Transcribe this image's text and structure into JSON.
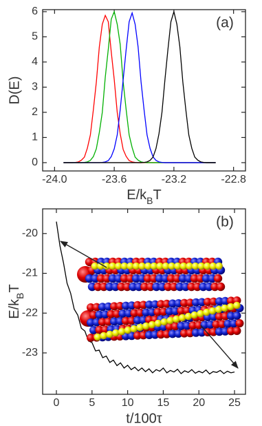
{
  "chart_data": [
    {
      "type": "line",
      "panel_label": "(a)",
      "ylabel": "D(E)",
      "xlabel": [
        "E/k",
        "B",
        "T"
      ],
      "xlim": [
        -24.08,
        -22.72
      ],
      "ylim": [
        -0.33,
        6.08
      ],
      "xticks": [
        {
          "value": -24.0,
          "label": "-24.0"
        },
        -23.6,
        -23.2,
        -22.8
      ],
      "yticks": [
        0,
        1,
        2,
        3,
        4,
        5,
        6
      ],
      "x": [
        -23.94,
        -23.92,
        -23.9,
        -23.88,
        -23.86,
        -23.84,
        -23.82,
        -23.8,
        -23.78,
        -23.76,
        -23.74,
        -23.72,
        -23.7,
        -23.68,
        -23.66,
        -23.64,
        -23.62,
        -23.6,
        -23.58,
        -23.56,
        -23.54,
        -23.52,
        -23.5,
        -23.48,
        -23.46,
        -23.44,
        -23.42,
        -23.4,
        -23.38,
        -23.36,
        -23.34,
        -23.32,
        -23.3,
        -23.28,
        -23.26,
        -23.24,
        -23.22,
        -23.2,
        -23.18,
        -23.16,
        -23.14,
        -23.12,
        -23.1,
        -23.08,
        -23.06,
        -23.04,
        -23.02,
        -23.0,
        -22.98,
        -22.96,
        -22.94,
        -22.92
      ],
      "series": [
        {
          "color": "#ff0000",
          "values": [
            0,
            0,
            0,
            0,
            0.01,
            0.03,
            0.1,
            0.22,
            0.58,
            1.1,
            2.1,
            3.2,
            4.6,
            5.5,
            5.85,
            5.6,
            4.4,
            3.3,
            2.0,
            1.15,
            0.52,
            0.25,
            0.08,
            0.03,
            0.01,
            0,
            0,
            0,
            0,
            0,
            0,
            0,
            0,
            0,
            0,
            0,
            0,
            0,
            0,
            0,
            0,
            0,
            0,
            0,
            0,
            0,
            0,
            0,
            0,
            0,
            0,
            0
          ]
        },
        {
          "color": "#00b000",
          "values": [
            0,
            0,
            0,
            0,
            0,
            0,
            0,
            0.01,
            0.03,
            0.09,
            0.24,
            0.55,
            1.2,
            2.0,
            3.4,
            4.5,
            5.7,
            6.0,
            5.5,
            4.7,
            3.2,
            2.1,
            1.1,
            0.6,
            0.22,
            0.1,
            0.03,
            0.01,
            0,
            0,
            0,
            0,
            0,
            0,
            0,
            0,
            0,
            0,
            0,
            0,
            0,
            0,
            0,
            0,
            0,
            0,
            0,
            0,
            0,
            0,
            0,
            0
          ]
        },
        {
          "color": "#0000ff",
          "values": [
            0,
            0,
            0,
            0,
            0,
            0,
            0,
            0,
            0,
            0,
            0,
            0,
            0,
            0.01,
            0.03,
            0.08,
            0.24,
            0.55,
            1.1,
            2.1,
            3.3,
            4.5,
            5.6,
            5.95,
            5.5,
            4.6,
            3.2,
            2.1,
            1.1,
            0.57,
            0.23,
            0.09,
            0.03,
            0.01,
            0,
            0,
            0,
            0,
            0,
            0,
            0,
            0,
            0,
            0,
            0,
            0,
            0,
            0,
            0,
            0,
            0,
            0
          ]
        },
        {
          "color": "#000000",
          "values": [
            0,
            0,
            0,
            0,
            0,
            0,
            0,
            0,
            0,
            0,
            0,
            0,
            0,
            0,
            0,
            0,
            0,
            0,
            0,
            0,
            0,
            0,
            0,
            0,
            0,
            0,
            0,
            0.01,
            0.03,
            0.09,
            0.22,
            0.56,
            1.15,
            2.0,
            3.3,
            4.5,
            5.6,
            6.0,
            5.5,
            4.6,
            3.2,
            2.1,
            1.1,
            0.57,
            0.22,
            0.1,
            0.03,
            0.01,
            0,
            0,
            0,
            0
          ]
        }
      ]
    },
    {
      "type": "line",
      "panel_label": "(b)",
      "ylabel": [
        "E/k",
        "B",
        "T"
      ],
      "xlabel": "t/100τ",
      "xlim": [
        -1.93,
        26.54
      ],
      "ylim": [
        -24.04,
        -19.38
      ],
      "xticks": [
        0,
        5,
        10,
        15,
        20,
        25
      ],
      "yticks": [
        -20,
        -21,
        -22,
        -23
      ],
      "x": [
        0,
        0.5,
        1,
        1.5,
        2,
        2.5,
        3,
        3.5,
        4,
        4.5,
        5,
        5.5,
        6,
        6.5,
        7,
        7.5,
        8,
        8.5,
        9,
        9.5,
        10,
        10.5,
        11,
        11.5,
        12,
        12.5,
        13,
        13.5,
        14,
        14.5,
        15,
        15.5,
        16,
        16.5,
        17,
        17.5,
        18,
        18.5,
        19,
        19.5,
        20,
        20.5,
        21,
        21.5,
        22,
        22.5,
        23,
        23.5,
        24,
        24.5,
        25
      ],
      "color": "#000000",
      "values": [
        -19.7,
        -20.31,
        -20.74,
        -21.25,
        -21.5,
        -21.9,
        -22.05,
        -22.38,
        -22.45,
        -22.7,
        -22.74,
        -22.95,
        -22.93,
        -23.12,
        -23.08,
        -23.24,
        -23.18,
        -23.32,
        -23.25,
        -23.38,
        -23.31,
        -23.42,
        -23.36,
        -23.45,
        -23.38,
        -23.47,
        -23.4,
        -23.5,
        -23.42,
        -23.46,
        -23.38,
        -23.5,
        -23.44,
        -23.48,
        -23.41,
        -23.52,
        -23.45,
        -23.49,
        -23.42,
        -23.51,
        -23.46,
        -23.5,
        -23.43,
        -23.53,
        -23.47,
        -23.49,
        -23.44,
        -23.52,
        -23.46,
        -23.5,
        -23.48
      ]
    }
  ]
}
